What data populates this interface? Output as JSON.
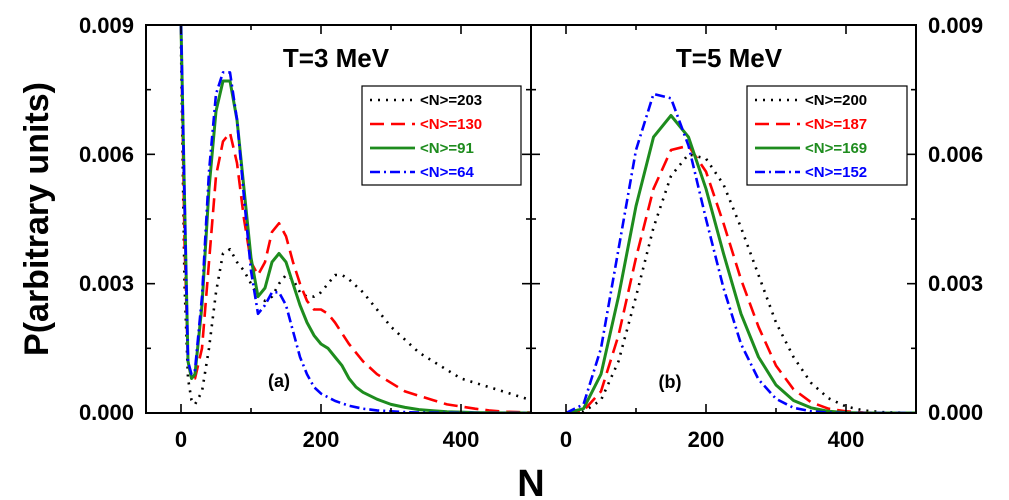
{
  "figure": {
    "ylabel": "P(arbitrary units)",
    "xlabel": "N",
    "y_ticks": [
      "0.000",
      "0.003",
      "0.006",
      "0.009"
    ],
    "x_ticks": [
      "0",
      "200",
      "400"
    ]
  },
  "chart_data": [
    {
      "type": "line",
      "title": "T=3 MeV",
      "panel_label": "(a)",
      "xlabel": "N",
      "ylabel": "P(arbitrary units)",
      "xlim": [
        -50,
        500
      ],
      "ylim": [
        0,
        0.009
      ],
      "legend_position": "top-right",
      "series": [
        {
          "name": "<N>=203",
          "color": "#000000",
          "style": "dotted",
          "x": [
            0,
            5,
            10,
            15,
            20,
            30,
            40,
            50,
            60,
            70,
            80,
            90,
            100,
            110,
            120,
            130,
            140,
            150,
            160,
            170,
            180,
            190,
            200,
            210,
            220,
            230,
            240,
            260,
            280,
            300,
            320,
            340,
            360,
            380,
            400,
            420,
            440,
            460,
            480,
            500
          ],
          "y": [
            0.0085,
            0.003,
            0.0008,
            0.0003,
            0.0002,
            0.0005,
            0.0015,
            0.0028,
            0.0037,
            0.0038,
            0.0035,
            0.0033,
            0.003,
            0.0027,
            0.0026,
            0.0027,
            0.003,
            0.0032,
            0.0031,
            0.0028,
            0.0027,
            0.0027,
            0.0028,
            0.003,
            0.0032,
            0.0032,
            0.0031,
            0.0028,
            0.0024,
            0.002,
            0.0017,
            0.0014,
            0.0012,
            0.001,
            0.0008,
            0.0007,
            0.0006,
            0.0005,
            0.0004,
            0.0003
          ]
        },
        {
          "name": "<N>=130",
          "color": "#ff0000",
          "style": "dashed",
          "x": [
            0,
            5,
            10,
            15,
            20,
            30,
            40,
            50,
            60,
            70,
            80,
            90,
            100,
            110,
            120,
            130,
            140,
            150,
            160,
            170,
            180,
            190,
            200,
            210,
            220,
            240,
            260,
            280,
            300,
            320,
            340,
            360,
            380,
            400,
            420,
            440,
            460,
            480,
            500
          ],
          "y": [
            0.009,
            0.004,
            0.0012,
            0.0008,
            0.0008,
            0.0015,
            0.0035,
            0.0055,
            0.0063,
            0.0065,
            0.0058,
            0.0045,
            0.0035,
            0.0032,
            0.0035,
            0.0042,
            0.0044,
            0.0041,
            0.0035,
            0.003,
            0.0026,
            0.0024,
            0.0024,
            0.0023,
            0.0021,
            0.0016,
            0.0012,
            0.0009,
            0.0007,
            0.0005,
            0.0004,
            0.0003,
            0.0002,
            0.00015,
            0.0001,
            6e-05,
            3e-05,
            2e-05,
            1e-05
          ]
        },
        {
          "name": "<N>=91",
          "color": "#1e8c1e",
          "style": "solid",
          "x": [
            0,
            5,
            10,
            15,
            20,
            30,
            40,
            50,
            60,
            70,
            80,
            90,
            100,
            110,
            120,
            130,
            140,
            150,
            160,
            170,
            180,
            190,
            200,
            210,
            220,
            230,
            240,
            250,
            260,
            280,
            300,
            320,
            340,
            360,
            380,
            400,
            420,
            440,
            460,
            480,
            500
          ],
          "y": [
            0.009,
            0.005,
            0.0012,
            0.0008,
            0.0009,
            0.0025,
            0.0052,
            0.007,
            0.0077,
            0.0077,
            0.0068,
            0.0052,
            0.0036,
            0.0027,
            0.0029,
            0.0035,
            0.0037,
            0.0035,
            0.003,
            0.0025,
            0.0021,
            0.0018,
            0.0016,
            0.0015,
            0.0013,
            0.0011,
            0.0008,
            0.0006,
            0.00048,
            0.00032,
            0.0002,
            0.00013,
            8e-05,
            5e-05,
            3e-05,
            2e-05,
            1e-05,
            5e-06,
            3e-06,
            2e-06,
            1e-06
          ]
        },
        {
          "name": "<N>=64",
          "color": "#0000ff",
          "style": "dashdot",
          "x": [
            0,
            5,
            10,
            15,
            20,
            30,
            40,
            50,
            60,
            70,
            80,
            90,
            100,
            110,
            120,
            130,
            140,
            150,
            160,
            170,
            180,
            190,
            200,
            220,
            240,
            260,
            280,
            300,
            320,
            340,
            360,
            380,
            400,
            420,
            440,
            460,
            480,
            500
          ],
          "y": [
            0.009,
            0.005,
            0.0012,
            0.0009,
            0.001,
            0.0027,
            0.0056,
            0.0074,
            0.0079,
            0.0079,
            0.0068,
            0.005,
            0.0033,
            0.0023,
            0.0025,
            0.0028,
            0.0028,
            0.0025,
            0.0019,
            0.0013,
            0.0009,
            0.0006,
            0.00045,
            0.00028,
            0.00017,
            0.0001,
            6e-05,
            4e-05,
            2e-05,
            1e-05,
            6e-06,
            4e-06,
            2e-06,
            1e-06,
            0,
            0,
            0,
            0
          ]
        }
      ]
    },
    {
      "type": "line",
      "title": "T=5 MeV",
      "panel_label": "(b)",
      "xlabel": "N",
      "ylabel": "P(arbitrary units)",
      "xlim": [
        -50,
        500
      ],
      "ylim": [
        0,
        0.009
      ],
      "legend_position": "top-right",
      "series": [
        {
          "name": "<N>=200",
          "color": "#000000",
          "style": "dotted",
          "x": [
            0,
            25,
            50,
            75,
            100,
            125,
            150,
            175,
            200,
            225,
            250,
            275,
            300,
            325,
            350,
            375,
            400,
            425,
            450,
            475,
            500
          ],
          "y": [
            0.0,
            3e-05,
            0.0003,
            0.0012,
            0.0027,
            0.0043,
            0.0055,
            0.006,
            0.0059,
            0.0053,
            0.0043,
            0.0032,
            0.0021,
            0.0013,
            0.0007,
            0.00034,
            0.00015,
            6e-05,
            2e-05,
            1e-05,
            0.0
          ]
        },
        {
          "name": "<N>=187",
          "color": "#ff0000",
          "style": "dashed",
          "x": [
            0,
            25,
            50,
            75,
            100,
            125,
            150,
            175,
            200,
            225,
            250,
            275,
            300,
            325,
            350,
            375,
            400,
            425,
            450,
            475,
            500
          ],
          "y": [
            0.0,
            5e-05,
            0.0005,
            0.0018,
            0.0036,
            0.0052,
            0.0061,
            0.0062,
            0.0056,
            0.0044,
            0.0031,
            0.002,
            0.0011,
            0.00055,
            0.00025,
            0.0001,
            4e-05,
            1e-05,
            0.0,
            0.0,
            0.0
          ]
        },
        {
          "name": "<N>=169",
          "color": "#1e8c1e",
          "style": "solid",
          "x": [
            0,
            25,
            50,
            75,
            100,
            125,
            150,
            175,
            200,
            225,
            250,
            275,
            300,
            325,
            350,
            375,
            400,
            425,
            450,
            475,
            500
          ],
          "y": [
            0.0,
            0.0001,
            0.0009,
            0.0027,
            0.0048,
            0.0064,
            0.0069,
            0.0064,
            0.0052,
            0.0037,
            0.0023,
            0.0013,
            0.00065,
            0.00029,
            0.00012,
            4e-05,
            1e-05,
            0.0,
            0.0,
            0.0,
            0.0
          ]
        },
        {
          "name": "<N>=152",
          "color": "#0000ff",
          "style": "dashdot",
          "x": [
            0,
            25,
            50,
            75,
            100,
            125,
            150,
            175,
            200,
            225,
            250,
            275,
            300,
            325,
            350,
            375,
            400,
            425,
            450,
            475,
            500
          ],
          "y": [
            0.0,
            0.0002,
            0.0015,
            0.0038,
            0.0061,
            0.0074,
            0.0073,
            0.0062,
            0.0045,
            0.0029,
            0.0016,
            0.00078,
            0.00033,
            0.00012,
            4e-05,
            1e-05,
            0.0,
            0.0,
            0.0,
            0.0,
            0.0
          ]
        }
      ]
    }
  ]
}
